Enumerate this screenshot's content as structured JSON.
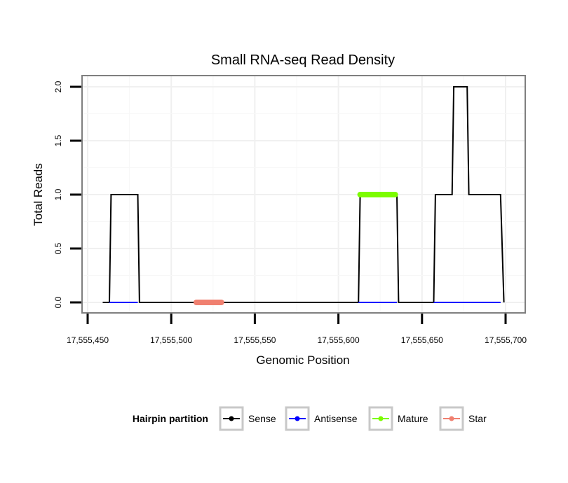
{
  "chart_data": {
    "type": "line",
    "title": "Small RNA-seq Read Density",
    "xlabel": "Genomic Position",
    "ylabel": "Total Reads",
    "xlim": [
      17555450,
      17555700
    ],
    "ylim": [
      0,
      2
    ],
    "x_ticks": [
      17555450,
      17555500,
      17555550,
      17555600,
      17555650,
      17555700
    ],
    "x_tick_labels": [
      "17,555,450",
      "17,555,500",
      "17,555,550",
      "17,555,600",
      "17,555,650",
      "17,555,700"
    ],
    "y_ticks": [
      0,
      0.5,
      1,
      1.5,
      2
    ],
    "y_tick_labels": [
      "0.0",
      "0.5",
      "1.0",
      "1.5",
      "2.0"
    ],
    "grid": true,
    "legend": {
      "title": "Hairpin partition",
      "position": "bottom",
      "entries": [
        {
          "name": "Sense",
          "color": "#000000"
        },
        {
          "name": "Antisense",
          "color": "#0000ff"
        },
        {
          "name": "Mature",
          "color": "#7cfc00"
        },
        {
          "name": "Star",
          "color": "#f08070"
        }
      ]
    },
    "series": [
      {
        "name": "Sense",
        "color": "#000000",
        "x": [
          17555459,
          17555463,
          17555464,
          17555480,
          17555481,
          17555612,
          17555613,
          17555635,
          17555636,
          17555657,
          17555658,
          17555668,
          17555669,
          17555677,
          17555678,
          17555697,
          17555699
        ],
        "y": [
          0,
          0,
          1,
          1,
          0,
          0,
          1,
          1,
          0,
          0,
          1,
          1,
          2,
          2,
          1,
          1,
          0
        ]
      },
      {
        "name": "Antisense",
        "color": "#0000ff",
        "x": [
          17555463,
          17555480,
          17555612,
          17555635,
          17555657,
          17555697
        ],
        "y": [
          0,
          0,
          null,
          0,
          0,
          0
        ]
      },
      {
        "name": "Mature",
        "color": "#7cfc00",
        "x": [
          17555613,
          17555634
        ],
        "y": [
          1,
          1
        ]
      },
      {
        "name": "Star",
        "color": "#f08070",
        "x": [
          17555515,
          17555530
        ],
        "y": [
          0,
          0
        ]
      }
    ]
  }
}
